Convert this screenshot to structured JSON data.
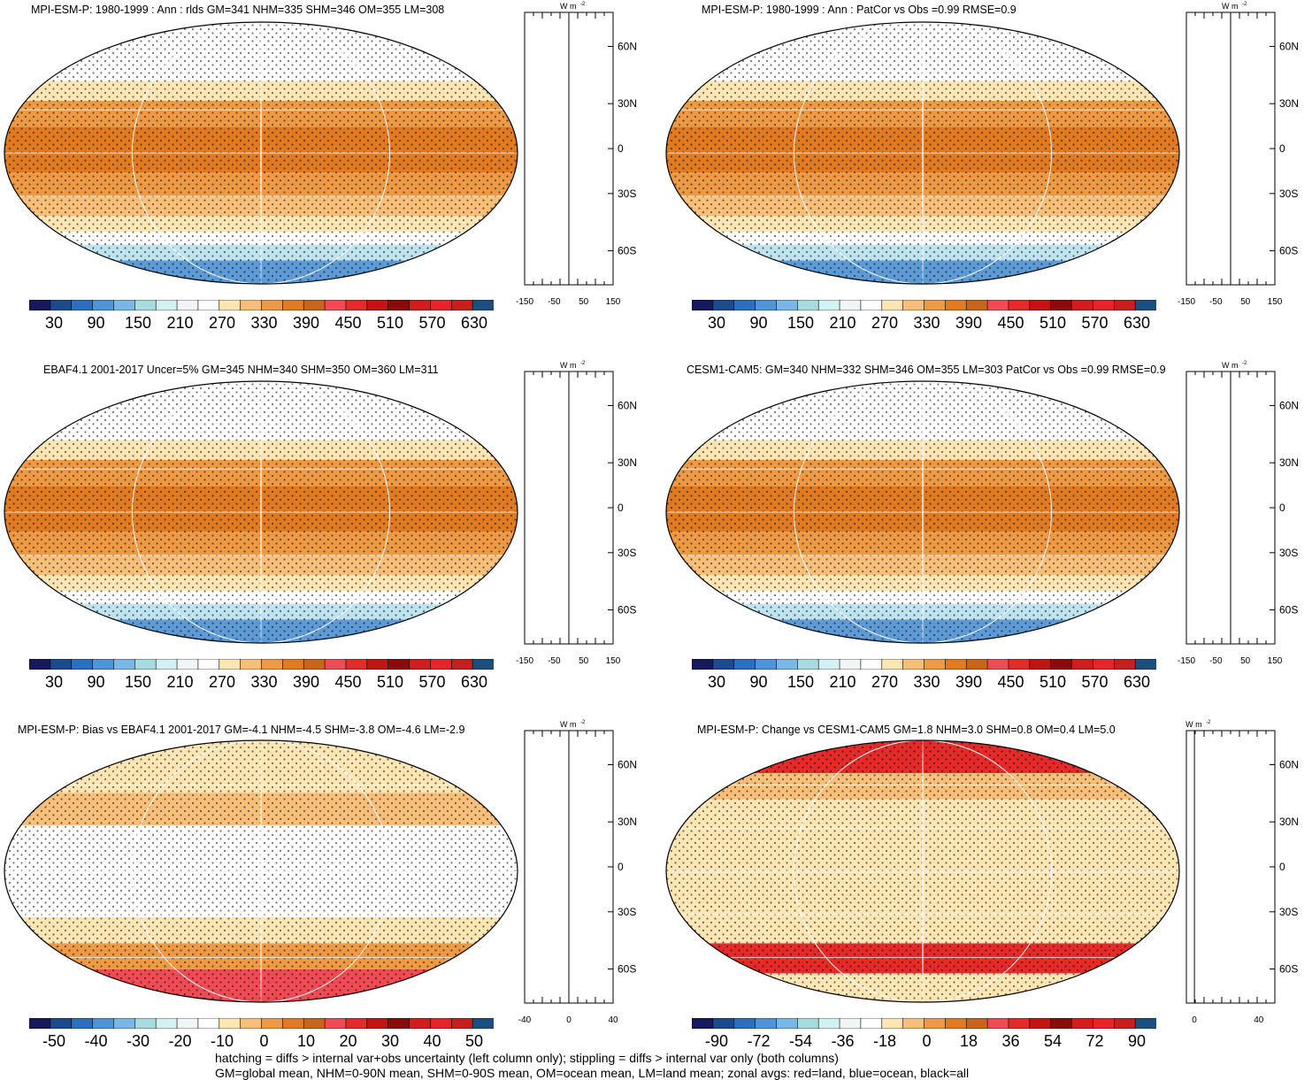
{
  "chart_data": [
    {
      "type": "heatmap",
      "title": "MPI-ESM-P: 1980-1999 : Ann : rlds GM=341 NHM=335 SHM=346 OM=355 LM=308",
      "colorbar_ticks": [
        "30",
        "90",
        "150",
        "210",
        "270",
        "330",
        "390",
        "450",
        "510",
        "570",
        "630"
      ],
      "zonal": {
        "unit": "W m-2",
        "xticks": [
          "-150",
          "-50",
          "50",
          "150"
        ],
        "xlim": [
          -150,
          150
        ],
        "yticks": [
          "60N",
          "30N",
          "0",
          "30S",
          "60S"
        ]
      }
    },
    {
      "type": "heatmap",
      "title": "MPI-ESM-P: 1980-1999 : Ann : PatCor vs Obs =0.99 RMSE=0.9",
      "colorbar_ticks": [
        "30",
        "90",
        "150",
        "210",
        "270",
        "330",
        "390",
        "450",
        "510",
        "570",
        "630"
      ],
      "zonal": {
        "unit": "W m-2",
        "xticks": [
          "-150",
          "-50",
          "50",
          "150"
        ],
        "xlim": [
          -150,
          150
        ],
        "yticks": [
          "60N",
          "30N",
          "0",
          "30S",
          "60S"
        ]
      }
    },
    {
      "type": "heatmap",
      "title": "EBAF4.1 2001-2017 Uncer=5% GM=345 NHM=340 SHM=350 OM=360 LM=311",
      "colorbar_ticks": [
        "30",
        "90",
        "150",
        "210",
        "270",
        "330",
        "390",
        "450",
        "510",
        "570",
        "630"
      ],
      "zonal": {
        "unit": "W m-2",
        "xticks": [
          "-150",
          "-50",
          "50",
          "150"
        ],
        "xlim": [
          -150,
          150
        ],
        "yticks": [
          "60N",
          "30N",
          "0",
          "30S",
          "60S"
        ]
      }
    },
    {
      "type": "heatmap",
      "title": "CESM1-CAM5: GM=340 NHM=332 SHM=346 OM=355 LM=303 PatCor vs Obs =0.99 RMSE=0.9",
      "colorbar_ticks": [
        "30",
        "90",
        "150",
        "210",
        "270",
        "330",
        "390",
        "450",
        "510",
        "570",
        "630"
      ],
      "zonal": {
        "unit": "W m-2",
        "xticks": [
          "-150",
          "-50",
          "50",
          "150"
        ],
        "xlim": [
          -150,
          150
        ],
        "yticks": [
          "60N",
          "30N",
          "0",
          "30S",
          "60S"
        ]
      }
    },
    {
      "type": "heatmap",
      "title": "MPI-ESM-P: Bias vs EBAF4.1 2001-2017 GM=-4.1 NHM=-4.5 SHM=-3.8 OM=-4.6 LM=-2.9",
      "colorbar_ticks": [
        "-50",
        "-40",
        "-30",
        "-20",
        "-10",
        "0",
        "10",
        "20",
        "30",
        "40",
        "50"
      ],
      "zonal": {
        "unit": "W m-2",
        "xticks": [
          "-40",
          "0",
          "40"
        ],
        "xlim": [
          -40,
          40
        ],
        "yticks": [
          "60N",
          "30N",
          "0",
          "30S",
          "60S"
        ]
      }
    },
    {
      "type": "heatmap",
      "title": "MPI-ESM-P: Change vs CESM1-CAM5 GM=1.8 NHM=3.0 SHM=0.8 OM=0.4 LM=5.0",
      "colorbar_ticks": [
        "-90",
        "-72",
        "-54",
        "-36",
        "-18",
        "0",
        "18",
        "36",
        "54",
        "72",
        "90"
      ],
      "zonal": {
        "unit": "W m-2",
        "xticks": [
          "0",
          "40"
        ],
        "xlim": [
          -5,
          50
        ],
        "yticks": [
          "60N",
          "30N",
          "0",
          "30S",
          "60S"
        ]
      }
    }
  ],
  "colorbar_colors": [
    "#161a5c",
    "#1c4a8e",
    "#2a6fc0",
    "#4d95d8",
    "#79b8e6",
    "#a6dcdf",
    "#d3f1f0",
    "#f1f5f6",
    "#ffffff",
    "#fde5b4",
    "#f7bf7a",
    "#ee9a45",
    "#e07b22",
    "#c8641b",
    "#ef4b55",
    "#e52a2a",
    "#c31414",
    "#8c0a0a",
    "#d41c1c",
    "#e8242b",
    "#c81e1e",
    "#1c4f80"
  ],
  "zonal_legend": {
    "unit_label": "W m",
    "unit_exp": "-2"
  },
  "footnotes": {
    "line1": "hatching = diffs > internal var+obs uncertainty (left column only); stippling = diffs > internal var only (both columns)",
    "line2": "GM=global mean, NHM=0-90N mean, SHM=0-90S mean, OM=ocean mean, LM=land mean; zonal avgs: red=land, blue=ocean, black=all"
  }
}
